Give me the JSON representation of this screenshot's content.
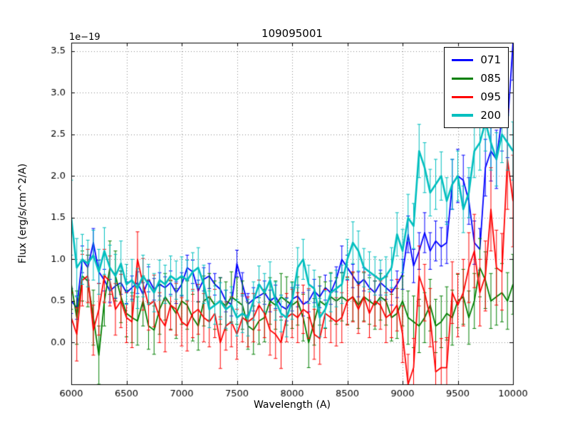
{
  "chart_data": {
    "type": "line",
    "title": "109095001",
    "xlabel": "Wavelength (A)",
    "ylabel": "Flux (erg/s/cm^2/A)",
    "y_offset_label": "1e−19",
    "xlim": [
      6000,
      10000
    ],
    "ylim": [
      -0.5,
      3.6
    ],
    "xticks": [
      6000,
      6500,
      7000,
      7500,
      8000,
      8500,
      9000,
      9500,
      10000
    ],
    "yticks": [
      0.0,
      0.5,
      1.0,
      1.5,
      2.0,
      2.5,
      3.0,
      3.5
    ],
    "grid": true,
    "legend_position": "upper right",
    "error_bars": true,
    "x": [
      6000,
      6050,
      6100,
      6150,
      6200,
      6250,
      6300,
      6350,
      6400,
      6450,
      6500,
      6550,
      6600,
      6650,
      6700,
      6750,
      6800,
      6850,
      6900,
      6950,
      7000,
      7050,
      7100,
      7150,
      7200,
      7250,
      7300,
      7350,
      7400,
      7450,
      7500,
      7550,
      7600,
      7650,
      7700,
      7750,
      7800,
      7850,
      7900,
      7950,
      8000,
      8050,
      8100,
      8150,
      8200,
      8250,
      8300,
      8350,
      8400,
      8450,
      8500,
      8550,
      8600,
      8650,
      8700,
      8750,
      8800,
      8850,
      8900,
      8950,
      9000,
      9050,
      9100,
      9150,
      9200,
      9250,
      9300,
      9350,
      9400,
      9450,
      9500,
      9550,
      9600,
      9650,
      9700,
      9750,
      9800,
      9850,
      9900,
      9950,
      10000
    ],
    "series": [
      {
        "name": "071",
        "color": "#0000ff",
        "linewidth": 1.8,
        "values": [
          0.5,
          0.42,
          1.0,
          0.9,
          1.2,
          0.85,
          0.75,
          0.62,
          0.68,
          0.72,
          0.6,
          0.66,
          0.72,
          0.58,
          0.76,
          0.64,
          0.7,
          0.66,
          0.72,
          0.6,
          0.7,
          0.9,
          0.85,
          0.62,
          0.76,
          0.8,
          0.7,
          0.64,
          0.5,
          0.46,
          0.95,
          0.7,
          0.46,
          0.52,
          0.56,
          0.6,
          0.5,
          0.55,
          0.44,
          0.4,
          0.52,
          0.56,
          0.46,
          0.5,
          0.62,
          0.55,
          0.66,
          0.6,
          0.76,
          1.0,
          0.9,
          0.8,
          0.7,
          0.76,
          0.66,
          0.6,
          0.72,
          0.66,
          0.6,
          0.7,
          0.82,
          1.3,
          0.92,
          1.1,
          1.32,
          1.1,
          1.22,
          1.15,
          1.2,
          1.9,
          2.0,
          1.95,
          1.7,
          1.2,
          1.12,
          2.1,
          2.3,
          2.2,
          2.7,
          2.6,
          3.6
        ],
        "errors": [
          0.15,
          0.14,
          0.16,
          0.15,
          0.17,
          0.14,
          0.13,
          0.14,
          0.15,
          0.14,
          0.13,
          0.14,
          0.13,
          0.14,
          0.15,
          0.13,
          0.14,
          0.13,
          0.14,
          0.13,
          0.14,
          0.15,
          0.14,
          0.13,
          0.14,
          0.15,
          0.13,
          0.14,
          0.13,
          0.14,
          0.16,
          0.14,
          0.13,
          0.14,
          0.13,
          0.14,
          0.13,
          0.14,
          0.13,
          0.14,
          0.14,
          0.13,
          0.14,
          0.13,
          0.14,
          0.13,
          0.15,
          0.14,
          0.15,
          0.16,
          0.15,
          0.14,
          0.15,
          0.14,
          0.15,
          0.14,
          0.15,
          0.14,
          0.15,
          0.16,
          0.18,
          0.22,
          0.2,
          0.22,
          0.24,
          0.22,
          0.24,
          0.23,
          0.25,
          0.3,
          0.32,
          0.3,
          0.28,
          0.26,
          0.25,
          0.34,
          0.36,
          0.35,
          0.4,
          0.38,
          0.45
        ]
      },
      {
        "name": "085",
        "color": "#007f00",
        "linewidth": 1.8,
        "values": [
          0.7,
          0.3,
          0.8,
          0.74,
          0.3,
          -0.15,
          0.5,
          0.9,
          0.8,
          0.55,
          0.35,
          0.3,
          0.26,
          0.5,
          0.2,
          0.15,
          0.4,
          0.55,
          0.45,
          0.35,
          0.5,
          0.45,
          0.3,
          0.2,
          0.5,
          0.55,
          0.45,
          0.5,
          0.44,
          0.55,
          0.5,
          0.45,
          0.2,
          0.15,
          0.26,
          0.3,
          0.5,
          0.45,
          0.55,
          0.5,
          0.45,
          0.5,
          0.3,
          0.0,
          0.25,
          0.5,
          0.45,
          0.55,
          0.5,
          0.55,
          0.5,
          0.55,
          0.45,
          0.55,
          0.5,
          0.45,
          0.55,
          0.5,
          0.3,
          0.35,
          0.5,
          0.3,
          0.25,
          0.2,
          0.3,
          0.45,
          0.2,
          0.25,
          0.35,
          0.3,
          0.5,
          0.55,
          0.3,
          0.5,
          0.9,
          0.75,
          0.5,
          0.55,
          0.6,
          0.5,
          0.7
        ],
        "errors": [
          0.3,
          0.32,
          0.3,
          0.31,
          0.33,
          0.35,
          0.3,
          0.32,
          0.3,
          0.31,
          0.28,
          0.3,
          0.29,
          0.3,
          0.28,
          0.29,
          0.3,
          0.28,
          0.29,
          0.3,
          0.28,
          0.29,
          0.28,
          0.29,
          0.3,
          0.28,
          0.29,
          0.28,
          0.29,
          0.3,
          0.28,
          0.29,
          0.28,
          0.29,
          0.28,
          0.29,
          0.28,
          0.29,
          0.28,
          0.29,
          0.28,
          0.29,
          0.28,
          0.3,
          0.28,
          0.29,
          0.28,
          0.29,
          0.28,
          0.29,
          0.28,
          0.29,
          0.28,
          0.29,
          0.28,
          0.29,
          0.28,
          0.29,
          0.28,
          0.3,
          0.3,
          0.32,
          0.31,
          0.32,
          0.3,
          0.31,
          0.32,
          0.31,
          0.32,
          0.33,
          0.32,
          0.33,
          0.32,
          0.33,
          0.35,
          0.34,
          0.33,
          0.34,
          0.35,
          0.34,
          0.36
        ]
      },
      {
        "name": "095",
        "color": "#ff0000",
        "linewidth": 1.8,
        "values": [
          0.3,
          0.1,
          0.75,
          0.8,
          0.15,
          0.4,
          0.8,
          0.74,
          0.4,
          0.5,
          0.3,
          0.25,
          1.0,
          0.7,
          0.45,
          0.5,
          0.3,
          0.2,
          0.45,
          0.4,
          0.25,
          0.2,
          0.35,
          0.4,
          0.3,
          0.25,
          0.35,
          0.0,
          0.2,
          0.25,
          0.1,
          0.3,
          0.25,
          0.3,
          0.45,
          0.35,
          0.15,
          0.1,
          0.0,
          0.3,
          0.35,
          0.3,
          0.4,
          0.35,
          0.1,
          0.05,
          0.35,
          0.3,
          0.25,
          0.3,
          0.5,
          0.55,
          0.4,
          0.55,
          0.35,
          0.5,
          0.45,
          0.3,
          0.35,
          0.45,
          0.1,
          -0.5,
          -0.3,
          0.8,
          0.6,
          0.3,
          -0.35,
          -0.3,
          -0.3,
          0.6,
          0.45,
          0.6,
          0.9,
          1.1,
          0.6,
          0.8,
          1.6,
          0.9,
          0.85,
          2.2,
          1.7
        ],
        "errors": [
          0.3,
          0.32,
          0.31,
          0.32,
          0.3,
          0.31,
          0.32,
          0.3,
          0.31,
          0.32,
          0.3,
          0.31,
          0.33,
          0.31,
          0.3,
          0.31,
          0.3,
          0.31,
          0.3,
          0.31,
          0.29,
          0.3,
          0.29,
          0.3,
          0.29,
          0.3,
          0.29,
          0.31,
          0.29,
          0.3,
          0.3,
          0.29,
          0.3,
          0.29,
          0.3,
          0.29,
          0.3,
          0.29,
          0.31,
          0.29,
          0.29,
          0.3,
          0.29,
          0.3,
          0.3,
          0.31,
          0.29,
          0.3,
          0.29,
          0.3,
          0.29,
          0.3,
          0.29,
          0.3,
          0.29,
          0.3,
          0.29,
          0.3,
          0.29,
          0.31,
          0.34,
          0.36,
          0.35,
          0.36,
          0.34,
          0.35,
          0.36,
          0.35,
          0.36,
          0.37,
          0.38,
          0.4,
          0.42,
          0.44,
          0.4,
          0.42,
          0.5,
          0.45,
          0.46,
          0.6,
          0.55
        ]
      },
      {
        "name": "200",
        "color": "#00bfbf",
        "linewidth": 2.6,
        "values": [
          1.5,
          0.9,
          1.0,
          0.95,
          1.05,
          0.85,
          1.1,
          0.9,
          0.8,
          0.95,
          0.7,
          0.75,
          0.65,
          0.8,
          0.7,
          0.6,
          0.75,
          0.7,
          0.8,
          0.75,
          0.8,
          0.75,
          0.85,
          0.9,
          0.7,
          0.4,
          0.45,
          0.5,
          0.4,
          0.45,
          0.3,
          0.35,
          0.3,
          0.5,
          0.7,
          0.6,
          0.75,
          0.5,
          0.35,
          0.3,
          0.5,
          0.9,
          1.0,
          0.7,
          0.65,
          0.3,
          0.4,
          0.6,
          0.65,
          0.7,
          1.0,
          1.2,
          1.1,
          0.9,
          0.85,
          0.8,
          0.75,
          0.8,
          0.9,
          1.3,
          1.1,
          1.5,
          1.4,
          2.3,
          2.1,
          1.8,
          1.9,
          2.0,
          1.7,
          1.9,
          2.0,
          1.6,
          1.8,
          2.3,
          2.4,
          2.65,
          2.4,
          2.2,
          2.5,
          2.4,
          2.3
        ],
        "errors": [
          0.45,
          0.35,
          0.3,
          0.28,
          0.3,
          0.27,
          0.28,
          0.27,
          0.26,
          0.27,
          0.24,
          0.25,
          0.24,
          0.25,
          0.24,
          0.23,
          0.24,
          0.23,
          0.24,
          0.23,
          0.23,
          0.24,
          0.23,
          0.24,
          0.23,
          0.22,
          0.23,
          0.22,
          0.23,
          0.22,
          0.22,
          0.23,
          0.22,
          0.23,
          0.22,
          0.23,
          0.22,
          0.23,
          0.22,
          0.23,
          0.22,
          0.24,
          0.24,
          0.23,
          0.22,
          0.23,
          0.22,
          0.23,
          0.22,
          0.23,
          0.24,
          0.25,
          0.24,
          0.23,
          0.24,
          0.23,
          0.24,
          0.23,
          0.24,
          0.26,
          0.26,
          0.28,
          0.27,
          0.32,
          0.3,
          0.28,
          0.3,
          0.29,
          0.28,
          0.3,
          0.3,
          0.28,
          0.3,
          0.32,
          0.33,
          0.35,
          0.33,
          0.32,
          0.34,
          0.33,
          0.35
        ]
      }
    ]
  }
}
